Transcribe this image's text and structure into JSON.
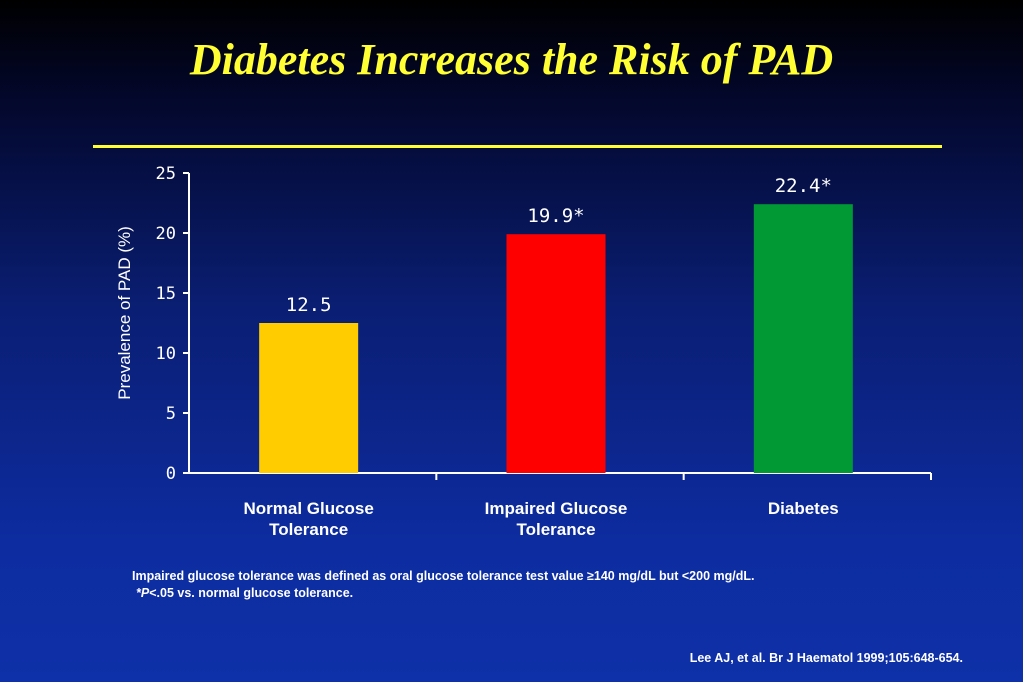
{
  "slide": {
    "title": "Diabetes Increases the Risk of PAD",
    "footnote_line1": "Impaired glucose tolerance was defined as oral glucose tolerance test value ≥140 mg/dL but <200 mg/dL.",
    "footnote_line2_prefix": "*",
    "footnote_line2_p": "P",
    "footnote_line2_rest": "<.05 vs. normal glucose tolerance.",
    "citation": "Lee AJ, et al. Br J Haematol 1999;105:648-654."
  },
  "colors": {
    "background": "#0b2690",
    "title": "#ffff33",
    "axis": "#ffffff"
  },
  "chart_data": {
    "type": "bar",
    "categories": [
      [
        "Normal Glucose",
        "Tolerance"
      ],
      [
        "Impaired Glucose",
        "Tolerance"
      ],
      [
        "Diabetes"
      ]
    ],
    "values": [
      12.5,
      19.9,
      22.4
    ],
    "value_labels": [
      "12.5",
      "19.9*",
      "22.4*"
    ],
    "bar_colors": [
      "#ffcc00",
      "#ff0000",
      "#009933"
    ],
    "ylabel": "Prevalence of PAD (%)",
    "ylim": [
      0,
      25
    ],
    "yticks": [
      0,
      5,
      10,
      15,
      20,
      25
    ],
    "grid": false,
    "legend": "none"
  }
}
